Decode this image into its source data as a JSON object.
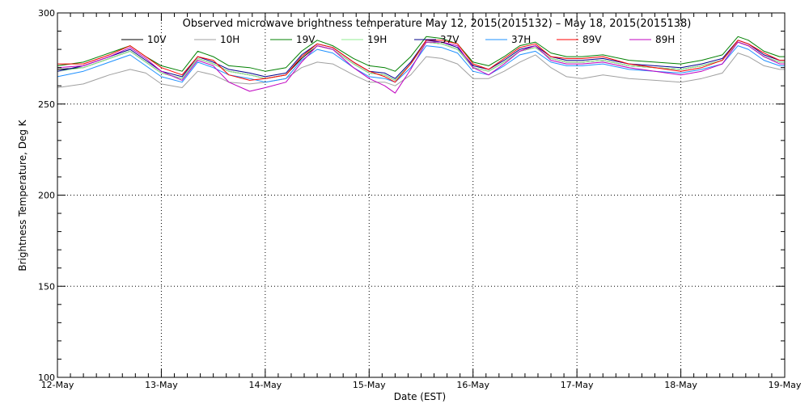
{
  "chart_data": {
    "type": "line",
    "title": "Observed microwave brightness temperature May 12, 2015(2015132) – May 18, 2015(2015138)",
    "xlabel": "Date (EST)",
    "ylabel": "Brightness Temperature, Deg K",
    "ylim": [
      100,
      300
    ],
    "xlim": [
      0,
      7
    ],
    "grid": true,
    "legend_position": "top",
    "x_ticks": [
      {
        "x": 0,
        "label": "12-May"
      },
      {
        "x": 1,
        "label": "13-May"
      },
      {
        "x": 2,
        "label": "14-May"
      },
      {
        "x": 3,
        "label": "15-May"
      },
      {
        "x": 4,
        "label": "16-May"
      },
      {
        "x": 5,
        "label": "17-May"
      },
      {
        "x": 6,
        "label": "18-May"
      },
      {
        "x": 7,
        "label": "19-May"
      }
    ],
    "y_ticks": [
      100,
      150,
      200,
      250,
      300
    ],
    "x": [
      0.0,
      0.25,
      0.5,
      0.7,
      0.85,
      1.0,
      1.2,
      1.35,
      1.5,
      1.65,
      1.85,
      2.0,
      2.2,
      2.35,
      2.5,
      2.65,
      2.85,
      3.0,
      3.15,
      3.25,
      3.4,
      3.55,
      3.7,
      3.85,
      4.0,
      4.15,
      4.3,
      4.45,
      4.6,
      4.75,
      4.9,
      5.05,
      5.25,
      5.5,
      5.75,
      6.0,
      6.2,
      6.4,
      6.55,
      6.65,
      6.8,
      6.95,
      7.0
    ],
    "series": [
      {
        "name": "10V",
        "color": "#000000",
        "values": [
          269,
          270,
          275,
          279,
          273,
          267,
          264,
          275,
          272,
          268,
          266,
          264,
          266,
          275,
          282,
          280,
          272,
          267,
          266,
          263,
          272,
          284,
          283,
          280,
          270,
          268,
          273,
          279,
          281,
          275,
          273,
          273,
          274,
          271,
          270,
          269,
          271,
          274,
          284,
          282,
          276,
          273,
          273
        ]
      },
      {
        "name": "10H",
        "color": "#a0a0a0",
        "values": [
          259,
          261,
          266,
          269,
          267,
          261,
          259,
          268,
          266,
          262,
          261,
          262,
          264,
          270,
          273,
          272,
          266,
          262,
          262,
          260,
          266,
          276,
          275,
          272,
          264,
          264,
          268,
          273,
          277,
          270,
          265,
          264,
          266,
          264,
          263,
          262,
          264,
          267,
          278,
          276,
          271,
          269,
          269
        ]
      },
      {
        "name": "19V",
        "color": "#008000",
        "values": [
          271,
          273,
          278,
          282,
          276,
          271,
          268,
          279,
          276,
          271,
          270,
          268,
          270,
          279,
          285,
          282,
          275,
          271,
          270,
          268,
          276,
          287,
          286,
          283,
          273,
          271,
          276,
          282,
          284,
          278,
          276,
          276,
          277,
          274,
          273,
          272,
          274,
          277,
          287,
          285,
          279,
          276,
          276
        ]
      },
      {
        "name": "19H",
        "color": "#90ee90",
        "values": [
          268,
          270,
          275,
          279,
          273,
          267,
          264,
          275,
          272,
          268,
          266,
          264,
          266,
          276,
          282,
          280,
          272,
          267,
          266,
          263,
          272,
          284,
          283,
          280,
          270,
          268,
          273,
          279,
          281,
          275,
          273,
          273,
          274,
          271,
          270,
          269,
          271,
          274,
          284,
          282,
          276,
          273,
          273
        ]
      },
      {
        "name": "37V",
        "color": "#00008b",
        "values": [
          268,
          271,
          276,
          280,
          274,
          268,
          265,
          276,
          273,
          269,
          267,
          265,
          267,
          277,
          283,
          281,
          273,
          268,
          267,
          264,
          273,
          285,
          284,
          281,
          271,
          269,
          274,
          280,
          282,
          276,
          274,
          274,
          275,
          272,
          271,
          270,
          272,
          275,
          285,
          283,
          277,
          274,
          274
        ]
      },
      {
        "name": "37H",
        "color": "#1e90ff",
        "values": [
          265,
          268,
          273,
          277,
          271,
          265,
          262,
          273,
          270,
          266,
          264,
          262,
          264,
          274,
          280,
          278,
          270,
          265,
          264,
          262,
          270,
          282,
          281,
          278,
          268,
          266,
          271,
          277,
          279,
          273,
          271,
          271,
          272,
          269,
          268,
          267,
          269,
          272,
          282,
          280,
          274,
          271,
          271
        ]
      },
      {
        "name": "89V",
        "color": "#ff0000",
        "values": [
          272,
          272,
          277,
          282,
          276,
          270,
          266,
          276,
          274,
          266,
          263,
          264,
          266,
          276,
          283,
          281,
          273,
          268,
          265,
          262,
          272,
          285,
          285,
          283,
          272,
          269,
          275,
          281,
          283,
          276,
          275,
          275,
          276,
          272,
          270,
          268,
          270,
          274,
          285,
          283,
          278,
          274,
          274
        ]
      },
      {
        "name": "89H",
        "color": "#c000c0",
        "values": [
          270,
          271,
          276,
          281,
          275,
          268,
          263,
          274,
          271,
          262,
          257,
          259,
          262,
          273,
          282,
          280,
          270,
          264,
          260,
          256,
          269,
          284,
          284,
          282,
          270,
          266,
          272,
          279,
          282,
          274,
          272,
          272,
          273,
          270,
          268,
          266,
          268,
          272,
          284,
          282,
          276,
          272,
          272
        ]
      }
    ]
  }
}
